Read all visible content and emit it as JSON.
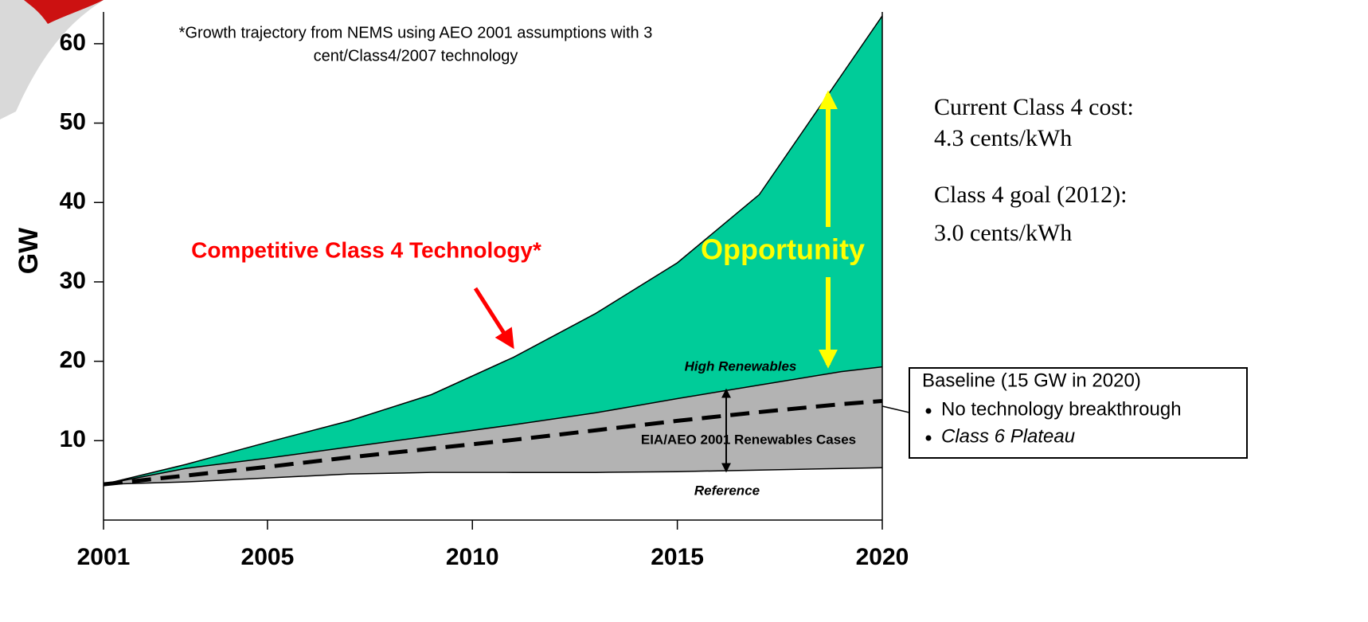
{
  "chart_data": {
    "type": "area",
    "y_label": "GW",
    "x": [
      2001,
      2003,
      2005,
      2007,
      2009,
      2011,
      2013,
      2015,
      2017,
      2019,
      2020
    ],
    "xlim": [
      2001,
      2020
    ],
    "xticks": [
      2001,
      2005,
      2010,
      2015,
      2020
    ],
    "ylim": [
      0,
      64
    ],
    "yticks": [
      10,
      20,
      30,
      40,
      50,
      60
    ],
    "series": [
      {
        "name": "Competitive Class 4 Technology*",
        "color": "#00cc99",
        "values": [
          4.5,
          7,
          9.8,
          12.5,
          15.8,
          20.5,
          26,
          32.4,
          41,
          56,
          63.5
        ]
      },
      {
        "name": "High Renewables",
        "color": "#b3b3b3",
        "values": [
          4.5,
          6.5,
          7.8,
          9.2,
          10.6,
          12,
          13.5,
          15.3,
          17,
          18.7,
          19.3
        ]
      },
      {
        "name": "Reference",
        "color": "#ffffff",
        "values": [
          4.5,
          4.8,
          5.3,
          5.8,
          6,
          6,
          6,
          6.1,
          6.3,
          6.5,
          6.6
        ]
      },
      {
        "name": "Baseline (15 GW in 2020)",
        "color": "#000000",
        "line_style": "dashed",
        "values": [
          4.5,
          5.6,
          6.7,
          7.9,
          9,
          10.1,
          11.3,
          12.5,
          13.6,
          14.6,
          15
        ]
      }
    ],
    "annotations": {
      "footnote": [
        "*Growth trajectory from NEMS using AEO 2001 assumptions with 3",
        "cent/Class4/2007 technology"
      ],
      "opportunity": "Opportunity",
      "cases_label": "EIA/AEO 2001 Renewables Cases",
      "side_notes": [
        "Current Class 4 cost:",
        "4.3 cents/kWh",
        "Class 4 goal (2012):",
        "3.0 cents/kWh"
      ],
      "baseline_bullets": [
        "No technology breakthrough",
        "Class 6 Plateau"
      ]
    }
  }
}
